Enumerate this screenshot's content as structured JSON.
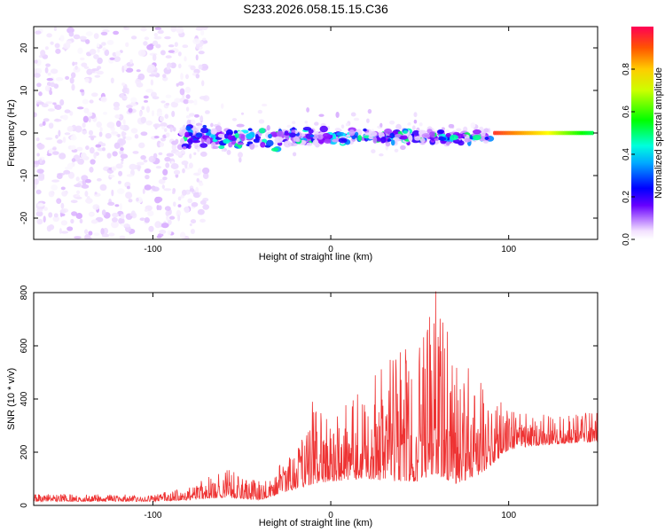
{
  "title": "S233.2026.058.15.15.C36",
  "chart_data": [
    {
      "type": "heatmap",
      "xlabel": "Height of straight line (km)",
      "ylabel": "Frequency (Hz)",
      "xlim": [
        -167,
        150
      ],
      "ylim": [
        -25,
        25
      ],
      "xticks": [
        -100,
        0,
        100
      ],
      "yticks": [
        -20,
        -10,
        0,
        10,
        20
      ],
      "colorbar": {
        "label": "Normalized spectral amplitude",
        "range": [
          0,
          1
        ],
        "ticks": [
          0.0,
          0.2,
          0.4,
          0.6,
          0.8
        ],
        "tick_labels": [
          "0.0",
          "0.2",
          "0.4",
          "0.6",
          "0.8"
        ],
        "colormap": [
          "#ffffff",
          "#e8d0ff",
          "#8800ff",
          "#0000ff",
          "#00ffff",
          "#00ff00",
          "#ffff00",
          "#ff8800",
          "#ff0044"
        ]
      },
      "ridge": {
        "description": "narrowband energy near 0 Hz",
        "segments": [
          {
            "x_start": -85,
            "x_end": 90,
            "freq_center": -1,
            "freq_spread": 4,
            "amplitude_range": [
              0.1,
              0.6
            ]
          },
          {
            "x_start": 92,
            "x_end": 148,
            "freq_center": 0,
            "freq_spread": 0.6,
            "amplitude_range": [
              0.6,
              0.95
            ]
          }
        ],
        "noise_region": {
          "x_start": -167,
          "x_end": -80,
          "amplitude_range": [
            0.02,
            0.15
          ]
        }
      }
    },
    {
      "type": "line",
      "xlabel": "Height of straight line (km)",
      "ylabel": "SNR (10 * v/v)",
      "xlim": [
        -167,
        150
      ],
      "ylim": [
        0,
        800
      ],
      "xticks": [
        -100,
        0,
        100
      ],
      "yticks": [
        0,
        200,
        400,
        600,
        800
      ],
      "color": "#ee3333",
      "series": [
        {
          "name": "SNR",
          "envelope": [
            {
              "x": -167,
              "base": 15,
              "peak": 45
            },
            {
              "x": -100,
              "base": 15,
              "peak": 40
            },
            {
              "x": -80,
              "base": 20,
              "peak": 70
            },
            {
              "x": -60,
              "base": 30,
              "peak": 140
            },
            {
              "x": -40,
              "base": 20,
              "peak": 90
            },
            {
              "x": -20,
              "base": 60,
              "peak": 200
            },
            {
              "x": -10,
              "base": 80,
              "peak": 400
            },
            {
              "x": 0,
              "base": 90,
              "peak": 330
            },
            {
              "x": 20,
              "base": 100,
              "peak": 450
            },
            {
              "x": 35,
              "base": 90,
              "peak": 600
            },
            {
              "x": 50,
              "base": 90,
              "peak": 610
            },
            {
              "x": 59,
              "base": 120,
              "peak": 805
            },
            {
              "x": 70,
              "base": 80,
              "peak": 550
            },
            {
              "x": 85,
              "base": 120,
              "peak": 480
            },
            {
              "x": 100,
              "base": 210,
              "peak": 360
            },
            {
              "x": 125,
              "base": 230,
              "peak": 340
            },
            {
              "x": 150,
              "base": 240,
              "peak": 360
            }
          ]
        }
      ]
    }
  ]
}
